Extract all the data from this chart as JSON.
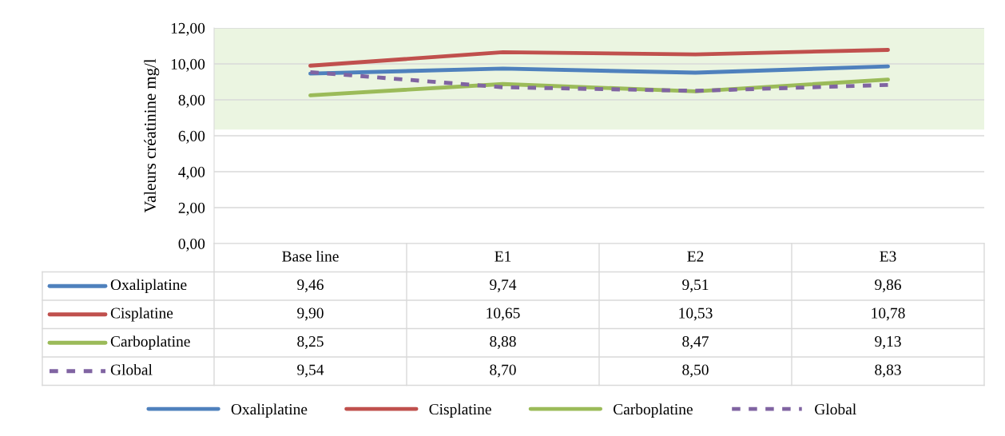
{
  "chart_data": {
    "type": "line",
    "ylabel": "Valeurs créatinine mg/l",
    "categories": [
      "Base line",
      "E1",
      "E2",
      "E3"
    ],
    "series": [
      {
        "name": "Oxaliplatine",
        "color": "#4f81bd",
        "values": [
          9.46,
          9.74,
          9.51,
          9.86
        ],
        "value_labels": [
          "9,46",
          "9,74",
          "9,51",
          "9,86"
        ]
      },
      {
        "name": "Cisplatine",
        "color": "#c0504d",
        "values": [
          9.9,
          10.65,
          10.53,
          10.78
        ],
        "value_labels": [
          "9,90",
          "10,65",
          "10,53",
          "10,78"
        ]
      },
      {
        "name": "Carboplatine",
        "color": "#9bbb59",
        "values": [
          8.25,
          8.88,
          8.47,
          9.13
        ],
        "value_labels": [
          "8,25",
          "8,88",
          "8,47",
          "9,13"
        ]
      },
      {
        "name": "Global",
        "color": "#8064a2",
        "line_style": "dashed",
        "values": [
          9.54,
          8.7,
          8.5,
          8.83
        ],
        "value_labels": [
          "9,54",
          "8,70",
          "8,50",
          "8,83"
        ]
      }
    ],
    "ylim": [
      0,
      12
    ],
    "yticks": [
      {
        "value": 0,
        "label": "0,00"
      },
      {
        "value": 2,
        "label": "2,00"
      },
      {
        "value": 4,
        "label": "4,00"
      },
      {
        "value": 6,
        "label": "6,00"
      },
      {
        "value": 8,
        "label": "8,00"
      },
      {
        "value": 10,
        "label": "10,00"
      },
      {
        "value": 12,
        "label": "12,00"
      }
    ],
    "bands": [
      {
        "axis": "y",
        "from": 6.35,
        "to": 12,
        "color": "#ebf5e1"
      }
    ],
    "grid": "y",
    "legend": "bottom",
    "marker": "none"
  }
}
